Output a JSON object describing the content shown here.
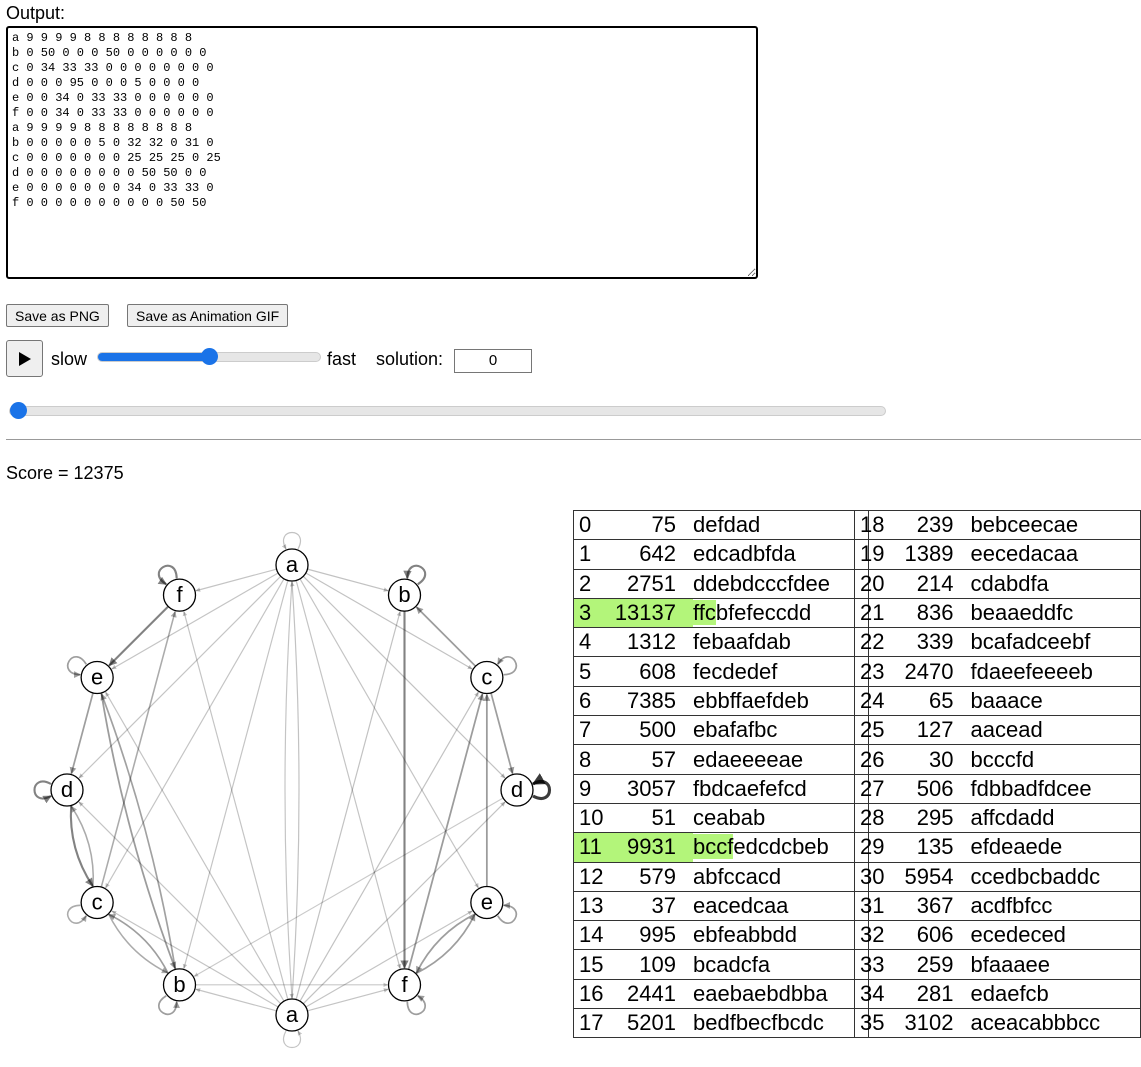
{
  "output_label": "Output:",
  "output_text": "a 9 9 9 9 8 8 8 8 8 8 8 8\nb 0 50 0 0 0 50 0 0 0 0 0 0\nc 0 34 33 33 0 0 0 0 0 0 0 0\nd 0 0 0 95 0 0 0 5 0 0 0 0\ne 0 0 34 0 33 33 0 0 0 0 0 0\nf 0 0 34 0 33 33 0 0 0 0 0 0\na 9 9 9 9 8 8 8 8 8 8 8 8\nb 0 0 0 0 0 5 0 32 32 0 31 0\nc 0 0 0 0 0 0 0 25 25 25 0 25\nd 0 0 0 0 0 0 0 0 50 50 0 0\ne 0 0 0 0 0 0 0 34 0 33 33 0\nf 0 0 0 0 0 0 0 0 0 0 50 50",
  "buttons": {
    "save_png": "Save as PNG",
    "save_gif": "Save as Animation GIF"
  },
  "controls": {
    "play_icon": "play-icon",
    "slow": "slow",
    "fast": "fast",
    "speed_percent": 50,
    "solution_label": "solution:",
    "solution_value": "0",
    "frame_percent": 0
  },
  "score": "Score = 12375",
  "graph": {
    "nodes": [
      "a",
      "b",
      "c",
      "d",
      "e",
      "f",
      "a",
      "b",
      "c",
      "d",
      "e",
      "f"
    ],
    "matrix": [
      [
        9,
        9,
        9,
        9,
        8,
        8,
        8,
        8,
        8,
        8,
        8,
        8
      ],
      [
        0,
        50,
        0,
        0,
        0,
        50,
        0,
        0,
        0,
        0,
        0,
        0
      ],
      [
        0,
        34,
        33,
        33,
        0,
        0,
        0,
        0,
        0,
        0,
        0,
        0
      ],
      [
        0,
        0,
        0,
        95,
        0,
        0,
        0,
        5,
        0,
        0,
        0,
        0
      ],
      [
        0,
        0,
        34,
        0,
        33,
        33,
        0,
        0,
        0,
        0,
        0,
        0
      ],
      [
        0,
        0,
        34,
        0,
        33,
        33,
        0,
        0,
        0,
        0,
        0,
        0
      ],
      [
        9,
        9,
        9,
        9,
        8,
        8,
        8,
        8,
        8,
        8,
        8,
        8
      ],
      [
        0,
        0,
        0,
        0,
        0,
        5,
        0,
        32,
        32,
        0,
        31,
        0
      ],
      [
        0,
        0,
        0,
        0,
        0,
        0,
        0,
        25,
        25,
        25,
        0,
        25
      ],
      [
        0,
        0,
        0,
        0,
        0,
        0,
        0,
        0,
        50,
        50,
        0,
        0
      ],
      [
        0,
        0,
        0,
        0,
        0,
        0,
        0,
        34,
        0,
        33,
        33,
        0
      ],
      [
        0,
        0,
        0,
        0,
        0,
        0,
        0,
        0,
        0,
        0,
        50,
        50
      ]
    ]
  },
  "highlight_color": "#b3f57a",
  "solutions": [
    {
      "i": "0",
      "score": "75",
      "str": "defdad"
    },
    {
      "i": "1",
      "score": "642",
      "str": "edcadbfda"
    },
    {
      "i": "2",
      "score": "2751",
      "str": "ddebdcccfdee"
    },
    {
      "i": "3",
      "score": "13137",
      "str": "ffcbfefeccdd",
      "highlight": 3
    },
    {
      "i": "4",
      "score": "1312",
      "str": "febaafdab"
    },
    {
      "i": "5",
      "score": "608",
      "str": "fecdedef"
    },
    {
      "i": "6",
      "score": "7385",
      "str": "ebbffaefdeb"
    },
    {
      "i": "7",
      "score": "500",
      "str": "ebafafbc"
    },
    {
      "i": "8",
      "score": "57",
      "str": "edaeeeeae"
    },
    {
      "i": "9",
      "score": "3057",
      "str": "fbdcaefefcd"
    },
    {
      "i": "10",
      "score": "51",
      "str": "ceabab"
    },
    {
      "i": "11",
      "score": "9931",
      "str": "bccfedcdcbeb",
      "highlight": 4
    },
    {
      "i": "12",
      "score": "579",
      "str": "abfccacd"
    },
    {
      "i": "13",
      "score": "37",
      "str": "eacedcaa"
    },
    {
      "i": "14",
      "score": "995",
      "str": "ebfeabbdd"
    },
    {
      "i": "15",
      "score": "109",
      "str": "bcadcfa"
    },
    {
      "i": "16",
      "score": "2441",
      "str": "eaebaebdbba"
    },
    {
      "i": "17",
      "score": "5201",
      "str": "bedfbecfbcdc"
    },
    {
      "i": "18",
      "score": "239",
      "str": "bebceecae"
    },
    {
      "i": "19",
      "score": "1389",
      "str": "eecedacaa"
    },
    {
      "i": "20",
      "score": "214",
      "str": "cdabdfa"
    },
    {
      "i": "21",
      "score": "836",
      "str": "beaaeddfc"
    },
    {
      "i": "22",
      "score": "339",
      "str": "bcafadceebf"
    },
    {
      "i": "23",
      "score": "2470",
      "str": "fdaeefeeeeb"
    },
    {
      "i": "24",
      "score": "65",
      "str": "baaace"
    },
    {
      "i": "25",
      "score": "127",
      "str": "aacead"
    },
    {
      "i": "26",
      "score": "30",
      "str": "bcccfd"
    },
    {
      "i": "27",
      "score": "506",
      "str": "fdbbadfdcee"
    },
    {
      "i": "28",
      "score": "295",
      "str": "affcdadd"
    },
    {
      "i": "29",
      "score": "135",
      "str": "efdeaede"
    },
    {
      "i": "30",
      "score": "5954",
      "str": "ccedbcbaddc"
    },
    {
      "i": "31",
      "score": "367",
      "str": "acdfbfcc"
    },
    {
      "i": "32",
      "score": "606",
      "str": "ecedeced"
    },
    {
      "i": "33",
      "score": "259",
      "str": "bfaaaee"
    },
    {
      "i": "34",
      "score": "281",
      "str": "edaefcb"
    },
    {
      "i": "35",
      "score": "3102",
      "str": "aceacabbbcc"
    }
  ]
}
